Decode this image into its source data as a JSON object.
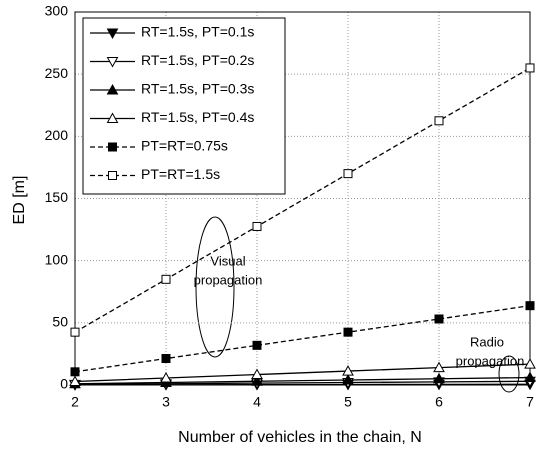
{
  "chart_data": {
    "type": "line",
    "x_label": "Number of vehicles in the chain, N",
    "y_label": "ED [m]",
    "x": [
      2,
      3,
      4,
      5,
      6,
      7
    ],
    "xlim": [
      2,
      7
    ],
    "xticks": [
      2,
      3,
      4,
      5,
      6,
      7
    ],
    "ylim": [
      0,
      300
    ],
    "yticks": [
      0,
      50,
      100,
      150,
      200,
      250,
      300
    ],
    "grid": true,
    "legend": "upper left",
    "series": [
      {
        "name": "RT=1.5s, PT=0.1s",
        "color": "#000000",
        "marker": "down-filled",
        "dash": "solid",
        "values": [
          0.1,
          0.2,
          0.3,
          0.4,
          0.5,
          0.6
        ]
      },
      {
        "name": "RT=1.5s, PT=0.2s",
        "color": "#000000",
        "marker": "down-open",
        "dash": "solid",
        "values": [
          0.5,
          1.0,
          1.5,
          2.0,
          2.5,
          3.0
        ]
      },
      {
        "name": "RT=1.5s, PT=0.3s",
        "color": "#000000",
        "marker": "up-filled",
        "dash": "solid",
        "values": [
          1.0,
          2.0,
          3.0,
          4.0,
          5.0,
          6.0
        ]
      },
      {
        "name": "RT=1.5s, PT=0.4s",
        "color": "#000000",
        "marker": "up-open",
        "dash": "solid",
        "values": [
          2.8,
          5.6,
          8.4,
          11.2,
          14.0,
          16.8
        ]
      },
      {
        "name": "PT=RT=0.75s",
        "color": "#000000",
        "marker": "square-filled",
        "dash": "dashed",
        "values": [
          10.6,
          21.3,
          31.9,
          42.5,
          53.1,
          63.8
        ]
      },
      {
        "name": "PT=RT=1.5s",
        "color": "#000000",
        "marker": "square-open",
        "dash": "dashed",
        "values": [
          42.5,
          85,
          127.5,
          170,
          212.5,
          255
        ]
      }
    ],
    "annotations": [
      {
        "lines": [
          "Visual",
          "propagation"
        ]
      },
      {
        "lines": [
          "Radio",
          "propagation"
        ]
      }
    ]
  }
}
